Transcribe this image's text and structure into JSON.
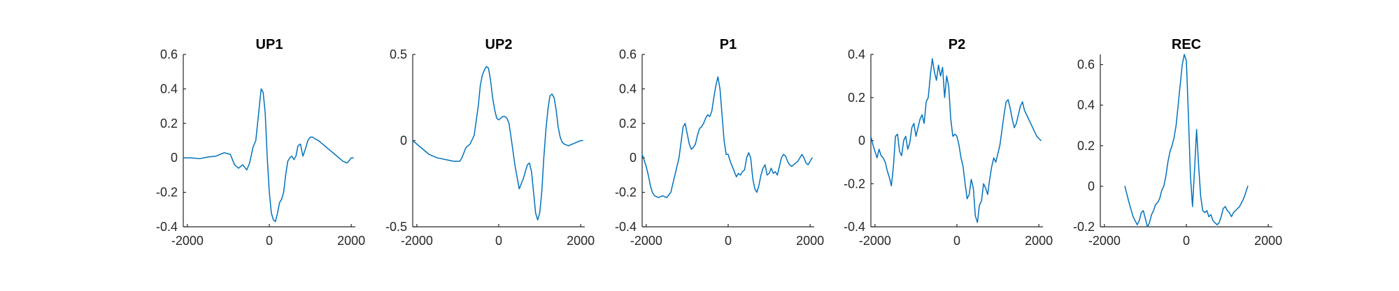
{
  "figure": {
    "line_color": "#0072BD"
  },
  "chart_data": [
    {
      "type": "line",
      "title": "UP1",
      "xlabel": "",
      "ylabel": "",
      "xlim": [
        -2100,
        2100
      ],
      "ylim": [
        -0.4,
        0.6
      ],
      "xticks": [
        -2000,
        0,
        2000
      ],
      "yticks": [
        -0.4,
        -0.2,
        0,
        0.2,
        0.4,
        0.6
      ],
      "xtick_labels": [
        "-2000",
        "0",
        "2000"
      ],
      "ytick_labels": [
        "-0.4",
        "-0.2",
        "0",
        "0.2",
        "0.4",
        "0.6"
      ],
      "grid": false,
      "series": [
        {
          "x": [
            -2100,
            -1900,
            -1700,
            -1500,
            -1300,
            -1100,
            -950,
            -850,
            -750,
            -650,
            -550,
            -480,
            -400,
            -330,
            -260,
            -200,
            -150,
            -100,
            -50,
            0,
            50,
            100,
            150,
            200,
            250,
            300,
            350,
            400,
            450,
            500,
            550,
            600,
            650,
            700,
            760,
            820,
            880,
            940,
            1000,
            1060,
            1120,
            1200,
            1300,
            1400,
            1500,
            1600,
            1700,
            1800,
            1900,
            1970,
            2000,
            2050
          ],
          "y": [
            0,
            0,
            -0.005,
            0.005,
            0.01,
            0.03,
            0.02,
            -0.04,
            -0.06,
            -0.04,
            -0.07,
            -0.03,
            0.06,
            0.1,
            0.26,
            0.4,
            0.38,
            0.26,
            0.0,
            -0.2,
            -0.32,
            -0.36,
            -0.37,
            -0.32,
            -0.26,
            -0.24,
            -0.2,
            -0.1,
            -0.02,
            0.0,
            0.01,
            -0.01,
            0.01,
            0.07,
            0.08,
            0.01,
            0.05,
            0.1,
            0.12,
            0.12,
            0.11,
            0.1,
            0.08,
            0.06,
            0.04,
            0.02,
            0.0,
            -0.02,
            -0.03,
            -0.01,
            0.0,
            0.0
          ]
        }
      ]
    },
    {
      "type": "line",
      "title": "UP2",
      "xlabel": "",
      "ylabel": "",
      "xlim": [
        -2100,
        2100
      ],
      "ylim": [
        -0.5,
        0.5
      ],
      "xticks": [
        -2000,
        0,
        2000
      ],
      "yticks": [
        -0.5,
        0,
        0.5
      ],
      "xtick_labels": [
        "-2000",
        "0",
        "2000"
      ],
      "ytick_labels": [
        "-0.5",
        "0",
        "0.5"
      ],
      "grid": false,
      "series": [
        {
          "x": [
            -2100,
            -1900,
            -1700,
            -1500,
            -1300,
            -1100,
            -950,
            -900,
            -800,
            -700,
            -600,
            -500,
            -450,
            -400,
            -350,
            -300,
            -250,
            -200,
            -150,
            -100,
            -50,
            0,
            50,
            100,
            150,
            200,
            250,
            300,
            400,
            500,
            600,
            700,
            750,
            800,
            900,
            950,
            1000,
            1050,
            1100,
            1150,
            1200,
            1250,
            1300,
            1350,
            1400,
            1450,
            1500,
            1550,
            1600,
            1700,
            1800,
            1900,
            2000,
            2050
          ],
          "y": [
            0.0,
            -0.04,
            -0.08,
            -0.1,
            -0.11,
            -0.12,
            -0.12,
            -0.1,
            -0.04,
            -0.02,
            0.03,
            0.2,
            0.32,
            0.38,
            0.41,
            0.43,
            0.42,
            0.35,
            0.25,
            0.18,
            0.13,
            0.12,
            0.13,
            0.14,
            0.14,
            0.13,
            0.1,
            0.02,
            -0.15,
            -0.28,
            -0.22,
            -0.14,
            -0.13,
            -0.18,
            -0.42,
            -0.46,
            -0.42,
            -0.3,
            -0.1,
            0.06,
            0.18,
            0.26,
            0.27,
            0.25,
            0.18,
            0.08,
            0.02,
            -0.01,
            -0.02,
            -0.03,
            -0.02,
            -0.01,
            0.0,
            0.0
          ]
        }
      ]
    },
    {
      "type": "line",
      "title": "P1",
      "xlabel": "",
      "ylabel": "",
      "xlim": [
        -2100,
        2100
      ],
      "ylim": [
        -0.4,
        0.6
      ],
      "xticks": [
        -2000,
        0,
        2000
      ],
      "yticks": [
        -0.4,
        -0.2,
        0,
        0.2,
        0.4,
        0.6
      ],
      "xtick_labels": [
        "-2000",
        "0",
        "2000"
      ],
      "ytick_labels": [
        "-0.4",
        "-0.2",
        "0",
        "0.2",
        "0.4",
        "0.6"
      ],
      "grid": false,
      "series": [
        {
          "x": [
            -2100,
            -2000,
            -1950,
            -1900,
            -1850,
            -1800,
            -1700,
            -1600,
            -1500,
            -1400,
            -1300,
            -1200,
            -1100,
            -1050,
            -1000,
            -950,
            -900,
            -850,
            -800,
            -750,
            -700,
            -650,
            -600,
            -550,
            -500,
            -450,
            -400,
            -350,
            -300,
            -250,
            -200,
            -150,
            -100,
            -50,
            0,
            50,
            100,
            150,
            200,
            250,
            300,
            350,
            400,
            450,
            500,
            550,
            600,
            650,
            700,
            750,
            800,
            850,
            900,
            950,
            1000,
            1050,
            1100,
            1150,
            1200,
            1250,
            1300,
            1350,
            1400,
            1450,
            1500,
            1550,
            1600,
            1650,
            1700,
            1750,
            1800,
            1850,
            1900,
            1950,
            2000,
            2050
          ],
          "y": [
            0.02,
            -0.05,
            -0.1,
            -0.16,
            -0.2,
            -0.22,
            -0.23,
            -0.22,
            -0.23,
            -0.2,
            -0.1,
            0.0,
            0.18,
            0.2,
            0.14,
            0.08,
            0.05,
            0.06,
            0.08,
            0.13,
            0.17,
            0.18,
            0.2,
            0.23,
            0.25,
            0.24,
            0.27,
            0.35,
            0.42,
            0.47,
            0.4,
            0.25,
            0.1,
            0.02,
            0.02,
            -0.02,
            -0.05,
            -0.08,
            -0.11,
            -0.09,
            -0.1,
            -0.08,
            -0.07,
            0.0,
            0.03,
            0.0,
            -0.12,
            -0.18,
            -0.2,
            -0.16,
            -0.1,
            -0.06,
            -0.04,
            -0.1,
            -0.09,
            -0.06,
            -0.09,
            -0.08,
            -0.1,
            -0.05,
            0.0,
            0.02,
            0.01,
            -0.02,
            -0.04,
            -0.05,
            -0.04,
            -0.03,
            -0.02,
            0.0,
            0.02,
            0.0,
            -0.03,
            -0.04,
            -0.02,
            0.0
          ]
        }
      ]
    },
    {
      "type": "line",
      "title": "P2",
      "xlabel": "",
      "ylabel": "",
      "xlim": [
        -2100,
        2100
      ],
      "ylim": [
        -0.4,
        0.4
      ],
      "xticks": [
        -2000,
        0,
        2000
      ],
      "yticks": [
        -0.4,
        -0.2,
        0,
        0.2,
        0.4
      ],
      "xtick_labels": [
        "-2000",
        "0",
        "2000"
      ],
      "ytick_labels": [
        "-0.4",
        "-0.2",
        "0",
        "0.2",
        "0.4"
      ],
      "grid": false,
      "series": [
        {
          "x": [
            -2100,
            -2050,
            -2000,
            -1950,
            -1900,
            -1850,
            -1800,
            -1750,
            -1700,
            -1650,
            -1600,
            -1550,
            -1500,
            -1450,
            -1400,
            -1350,
            -1300,
            -1250,
            -1200,
            -1150,
            -1100,
            -1050,
            -1000,
            -950,
            -900,
            -850,
            -800,
            -750,
            -700,
            -650,
            -600,
            -550,
            -500,
            -450,
            -400,
            -350,
            -300,
            -250,
            -200,
            -150,
            -100,
            -50,
            0,
            50,
            100,
            150,
            200,
            250,
            300,
            350,
            400,
            450,
            500,
            550,
            600,
            650,
            700,
            750,
            800,
            850,
            900,
            950,
            1000,
            1050,
            1100,
            1150,
            1200,
            1250,
            1300,
            1350,
            1400,
            1450,
            1500,
            1550,
            1600,
            1650,
            1700,
            1750,
            1800,
            1850,
            1900,
            1950,
            2000,
            2050
          ],
          "y": [
            0.02,
            -0.02,
            -0.05,
            -0.08,
            -0.04,
            -0.07,
            -0.08,
            -0.1,
            -0.14,
            -0.17,
            -0.21,
            -0.12,
            0.02,
            0.03,
            -0.05,
            -0.07,
            0.0,
            0.02,
            -0.04,
            -0.01,
            0.06,
            0.08,
            0.02,
            0.06,
            0.1,
            0.12,
            0.08,
            0.18,
            0.2,
            0.3,
            0.38,
            0.32,
            0.28,
            0.35,
            0.3,
            0.34,
            0.2,
            0.3,
            0.25,
            0.1,
            0.02,
            0.03,
            0.02,
            -0.02,
            -0.08,
            -0.12,
            -0.2,
            -0.27,
            -0.25,
            -0.18,
            -0.22,
            -0.35,
            -0.38,
            -0.3,
            -0.28,
            -0.2,
            -0.22,
            -0.25,
            -0.18,
            -0.12,
            -0.08,
            -0.1,
            -0.06,
            -0.02,
            0.05,
            0.12,
            0.18,
            0.19,
            0.15,
            0.1,
            0.06,
            0.08,
            0.12,
            0.16,
            0.18,
            0.14,
            0.12,
            0.1,
            0.08,
            0.06,
            0.04,
            0.02,
            0.01,
            0.0
          ]
        }
      ]
    },
    {
      "type": "line",
      "title": "REC",
      "xlabel": "",
      "ylabel": "",
      "xlim": [
        -2100,
        2100
      ],
      "ylim": [
        -0.2,
        0.65
      ],
      "xticks": [
        -2000,
        0,
        2000
      ],
      "yticks": [
        -0.2,
        0,
        0.2,
        0.4,
        0.6
      ],
      "xtick_labels": [
        "-2000",
        "0",
        "2000"
      ],
      "ytick_labels": [
        "-0.2",
        "0",
        "0.2",
        "0.4",
        "0.6"
      ],
      "grid": false,
      "series": [
        {
          "x": [
            -1500,
            -1400,
            -1300,
            -1200,
            -1150,
            -1100,
            -1050,
            -1000,
            -950,
            -900,
            -850,
            -800,
            -750,
            -700,
            -650,
            -600,
            -550,
            -500,
            -450,
            -400,
            -350,
            -300,
            -250,
            -200,
            -150,
            -100,
            -50,
            0,
            50,
            100,
            150,
            200,
            250,
            300,
            350,
            400,
            450,
            500,
            550,
            600,
            650,
            700,
            750,
            800,
            850,
            900,
            950,
            1000,
            1050,
            1100,
            1150,
            1200,
            1250,
            1300,
            1350,
            1400,
            1450,
            1500
          ],
          "y": [
            0.0,
            -0.08,
            -0.15,
            -0.19,
            -0.17,
            -0.13,
            -0.12,
            -0.16,
            -0.2,
            -0.18,
            -0.14,
            -0.12,
            -0.09,
            -0.08,
            -0.06,
            -0.02,
            0.0,
            0.05,
            0.12,
            0.17,
            0.2,
            0.24,
            0.3,
            0.4,
            0.5,
            0.6,
            0.65,
            0.62,
            0.35,
            0.05,
            -0.1,
            0.08,
            0.28,
            0.1,
            -0.05,
            -0.12,
            -0.13,
            -0.12,
            -0.15,
            -0.14,
            -0.17,
            -0.18,
            -0.19,
            -0.18,
            -0.15,
            -0.11,
            -0.1,
            -0.12,
            -0.13,
            -0.15,
            -0.13,
            -0.12,
            -0.11,
            -0.1,
            -0.08,
            -0.06,
            -0.03,
            0.0
          ]
        }
      ]
    }
  ]
}
